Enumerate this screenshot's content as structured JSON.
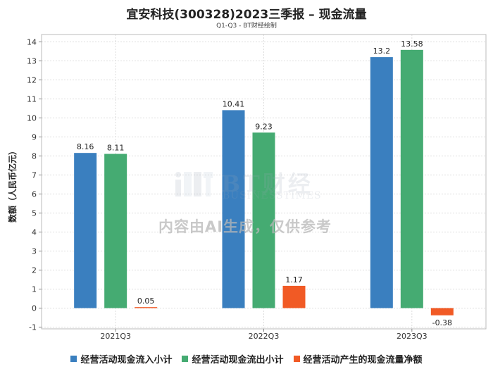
{
  "chart_data": {
    "type": "bar",
    "title": "宜安科技(300328)2023三季报 – 现金流量",
    "subtitle": "Q1-Q3 - BT财经绘制",
    "ylabel": "数额（人民币亿元）",
    "xlabel": "",
    "categories": [
      "2021Q3",
      "2022Q3",
      "2023Q3"
    ],
    "ylim": [
      -1,
      14
    ],
    "yticks": [
      -1,
      0,
      1,
      2,
      3,
      4,
      5,
      6,
      7,
      8,
      9,
      10,
      11,
      12,
      13,
      14
    ],
    "grid": true,
    "legend_position": "bottom",
    "series": [
      {
        "name": "经营活动现金流入小计",
        "color": "#3a7fbf",
        "values": [
          8.16,
          10.41,
          13.2
        ],
        "labels": [
          "8.16",
          "10.41",
          "13.2"
        ]
      },
      {
        "name": "经营活动现金流出小计",
        "color": "#45ab72",
        "values": [
          8.11,
          9.23,
          13.58
        ],
        "labels": [
          "8.11",
          "9.23",
          "13.58"
        ]
      },
      {
        "name": "经营活动产生的现金流量净额",
        "color": "#f15a25",
        "values": [
          0.05,
          1.17,
          -0.38
        ],
        "labels": [
          "0.05",
          "1.17",
          "-0.38"
        ]
      }
    ]
  },
  "watermark": {
    "logo_text": "BT财经",
    "logo_subtext": "BUSINESSTIMES",
    "notice": "内容由AI生成，仅供参考"
  }
}
